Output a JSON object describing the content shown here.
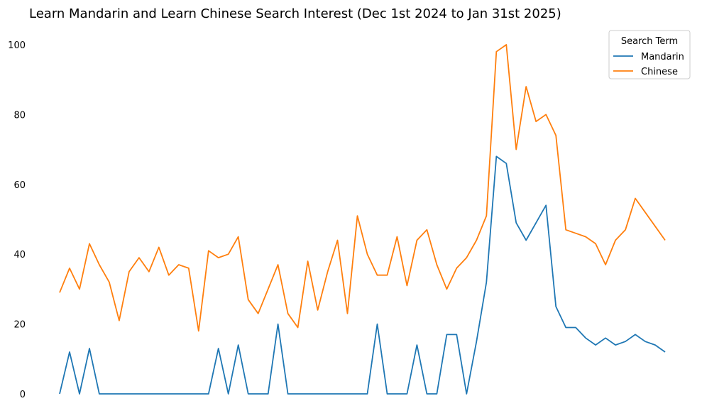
{
  "chart_data": {
    "type": "line",
    "title": "Learn Mandarin and Learn Chinese Search Interest (Dec 1st 2024 to Jan 31st 2025)",
    "xlabel": "",
    "ylabel": "",
    "ylim": [
      0,
      100
    ],
    "y_ticks": [
      0,
      20,
      40,
      60,
      80,
      100
    ],
    "grid": false,
    "legend": {
      "title": "Search Term",
      "placement": "top-right"
    },
    "series": [
      {
        "name": "Mandarin",
        "color": "#1f77b4",
        "values": [
          0,
          12,
          0,
          13,
          0,
          0,
          0,
          0,
          0,
          0,
          0,
          0,
          0,
          0,
          0,
          0,
          13,
          0,
          14,
          0,
          0,
          0,
          20,
          0,
          0,
          0,
          0,
          0,
          0,
          0,
          0,
          0,
          20,
          0,
          0,
          0,
          14,
          0,
          0,
          17,
          17,
          0,
          15,
          32,
          68,
          66,
          49,
          44,
          49,
          54,
          25,
          19,
          19,
          16,
          14,
          16,
          14,
          15,
          17,
          15,
          14,
          12
        ]
      },
      {
        "name": "Chinese",
        "color": "#ff7f0e",
        "values": [
          29,
          36,
          30,
          43,
          37,
          32,
          21,
          35,
          39,
          35,
          42,
          34,
          37,
          36,
          18,
          41,
          39,
          40,
          45,
          27,
          23,
          30,
          37,
          23,
          19,
          38,
          24,
          35,
          44,
          23,
          51,
          40,
          34,
          34,
          45,
          31,
          44,
          47,
          37,
          30,
          36,
          39,
          44,
          51,
          98,
          100,
          70,
          88,
          78,
          80,
          74,
          47,
          46,
          45,
          43,
          37,
          44,
          47,
          56,
          52,
          48,
          44
        ]
      }
    ]
  }
}
